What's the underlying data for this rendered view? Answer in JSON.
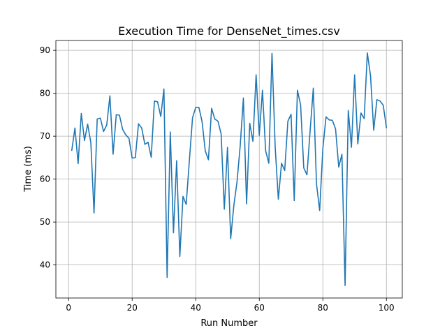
{
  "chart_data": {
    "type": "line",
    "title": "Execution Time for DenseNet_times.csv",
    "xlabel": "Run Number",
    "ylabel": "Time (ms)",
    "xlim": [
      -4,
      105
    ],
    "ylim": [
      32.3,
      92.3
    ],
    "xticks": [
      0,
      20,
      40,
      60,
      80,
      100
    ],
    "yticks": [
      40,
      50,
      60,
      70,
      80,
      90
    ],
    "grid": true,
    "series": [
      {
        "color": "#1f77b4",
        "x": [
          1,
          2,
          3,
          4,
          5,
          6,
          7,
          8,
          9,
          10,
          11,
          12,
          13,
          14,
          15,
          16,
          17,
          18,
          19,
          20,
          21,
          22,
          23,
          24,
          25,
          26,
          27,
          28,
          29,
          30,
          31,
          32,
          33,
          34,
          35,
          36,
          37,
          38,
          39,
          40,
          41,
          42,
          43,
          44,
          45,
          46,
          47,
          48,
          49,
          50,
          51,
          52,
          53,
          54,
          55,
          56,
          57,
          58,
          59,
          60,
          61,
          62,
          63,
          64,
          65,
          66,
          67,
          68,
          69,
          70,
          71,
          72,
          73,
          74,
          75,
          76,
          77,
          78,
          79,
          80,
          81,
          82,
          83,
          84,
          85,
          86,
          87,
          88,
          89,
          90,
          91,
          92,
          93,
          94,
          95,
          96,
          97,
          98,
          99,
          100
        ],
        "y": [
          66.7,
          71.9,
          63.6,
          75.3,
          69.0,
          72.8,
          68.5,
          52.1,
          74.0,
          74.2,
          71.1,
          72.6,
          79.4,
          65.8,
          75.0,
          74.9,
          71.6,
          70.3,
          69.5,
          64.9,
          65.0,
          72.9,
          71.9,
          68.1,
          68.6,
          65.1,
          78.2,
          78.0,
          74.6,
          81.0,
          37.1,
          71.0,
          47.5,
          64.3,
          42.0,
          56.0,
          54.1,
          64.3,
          74.3,
          76.7,
          76.7,
          73.4,
          66.6,
          64.5,
          76.5,
          74.0,
          73.5,
          70.5,
          53.0,
          67.4,
          46.1,
          53.9,
          59.4,
          67.8,
          78.9,
          54.2,
          73.0,
          68.8,
          84.3,
          70.2,
          80.7,
          66.6,
          63.7,
          89.3,
          67.5,
          55.3,
          63.7,
          62.0,
          73.5,
          75.1,
          55.0,
          80.7,
          77.3,
          62.6,
          61.0,
          71.3,
          81.2,
          58.9,
          52.7,
          67.1,
          74.5,
          73.8,
          73.7,
          71.7,
          62.8,
          65.8,
          35.2,
          76.0,
          67.4,
          84.3,
          68.2,
          75.4,
          74.1,
          89.4,
          84.1,
          71.4,
          78.5,
          78.2,
          77.2,
          72.0
        ]
      }
    ]
  }
}
